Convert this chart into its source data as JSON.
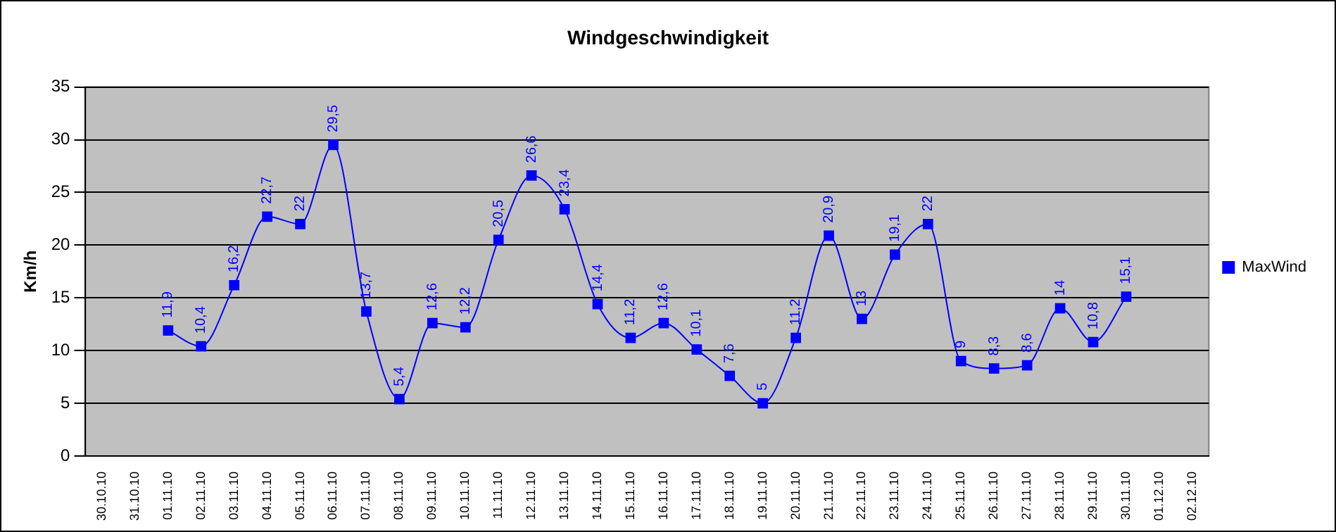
{
  "chart_data": {
    "type": "line",
    "title": "Windgeschwindigkeit",
    "ylabel": "Km/h",
    "categories": [
      "30.10.10",
      "31.10.10",
      "01.11.10",
      "02.11.10",
      "03.11.10",
      "04.11.10",
      "05.11.10",
      "06.11.10",
      "07.11.10",
      "08.11.10",
      "09.11.10",
      "10.11.10",
      "11.11.10",
      "12.11.10",
      "13.11.10",
      "14.11.10",
      "15.11.10",
      "16.11.10",
      "17.11.10",
      "18.11.10",
      "19.11.10",
      "20.11.10",
      "21.11.10",
      "22.11.10",
      "23.11.10",
      "24.11.10",
      "25.11.10",
      "26.11.10",
      "27.11.10",
      "28.11.10",
      "29.11.10",
      "30.11.10",
      "01.12.10",
      "02.12.10"
    ],
    "series": [
      {
        "name": "MaxWind",
        "color": "#0000ff",
        "values": [
          null,
          null,
          11.9,
          10.4,
          16.2,
          22.7,
          22,
          29.5,
          13.7,
          5.4,
          12.6,
          12.2,
          20.5,
          26.6,
          23.4,
          14.4,
          11.2,
          12.6,
          10.1,
          7.6,
          5,
          11.2,
          20.9,
          13,
          19.1,
          22,
          9,
          8.3,
          8.6,
          14,
          10.8,
          15.1,
          null,
          null
        ],
        "value_labels": [
          null,
          null,
          "11,9",
          "10,4",
          "16,2",
          "22,7",
          "22",
          "29,5",
          "13,7",
          "5,4",
          "12,6",
          "12,2",
          "20,5",
          "26,6",
          "23,4",
          "14,4",
          "11,2",
          "12,6",
          "10,1",
          "7,6",
          "5",
          "11,2",
          "20,9",
          "13",
          "19,1",
          "22",
          "9",
          "8,3",
          "8,6",
          "14",
          "10,8",
          "15,1",
          null,
          null
        ]
      }
    ],
    "ylim": [
      0,
      35
    ],
    "yticks": [
      0,
      5,
      10,
      15,
      20,
      25,
      30,
      35
    ],
    "grid": "y",
    "legend": "right",
    "marker": "square",
    "line_style": "solid"
  }
}
